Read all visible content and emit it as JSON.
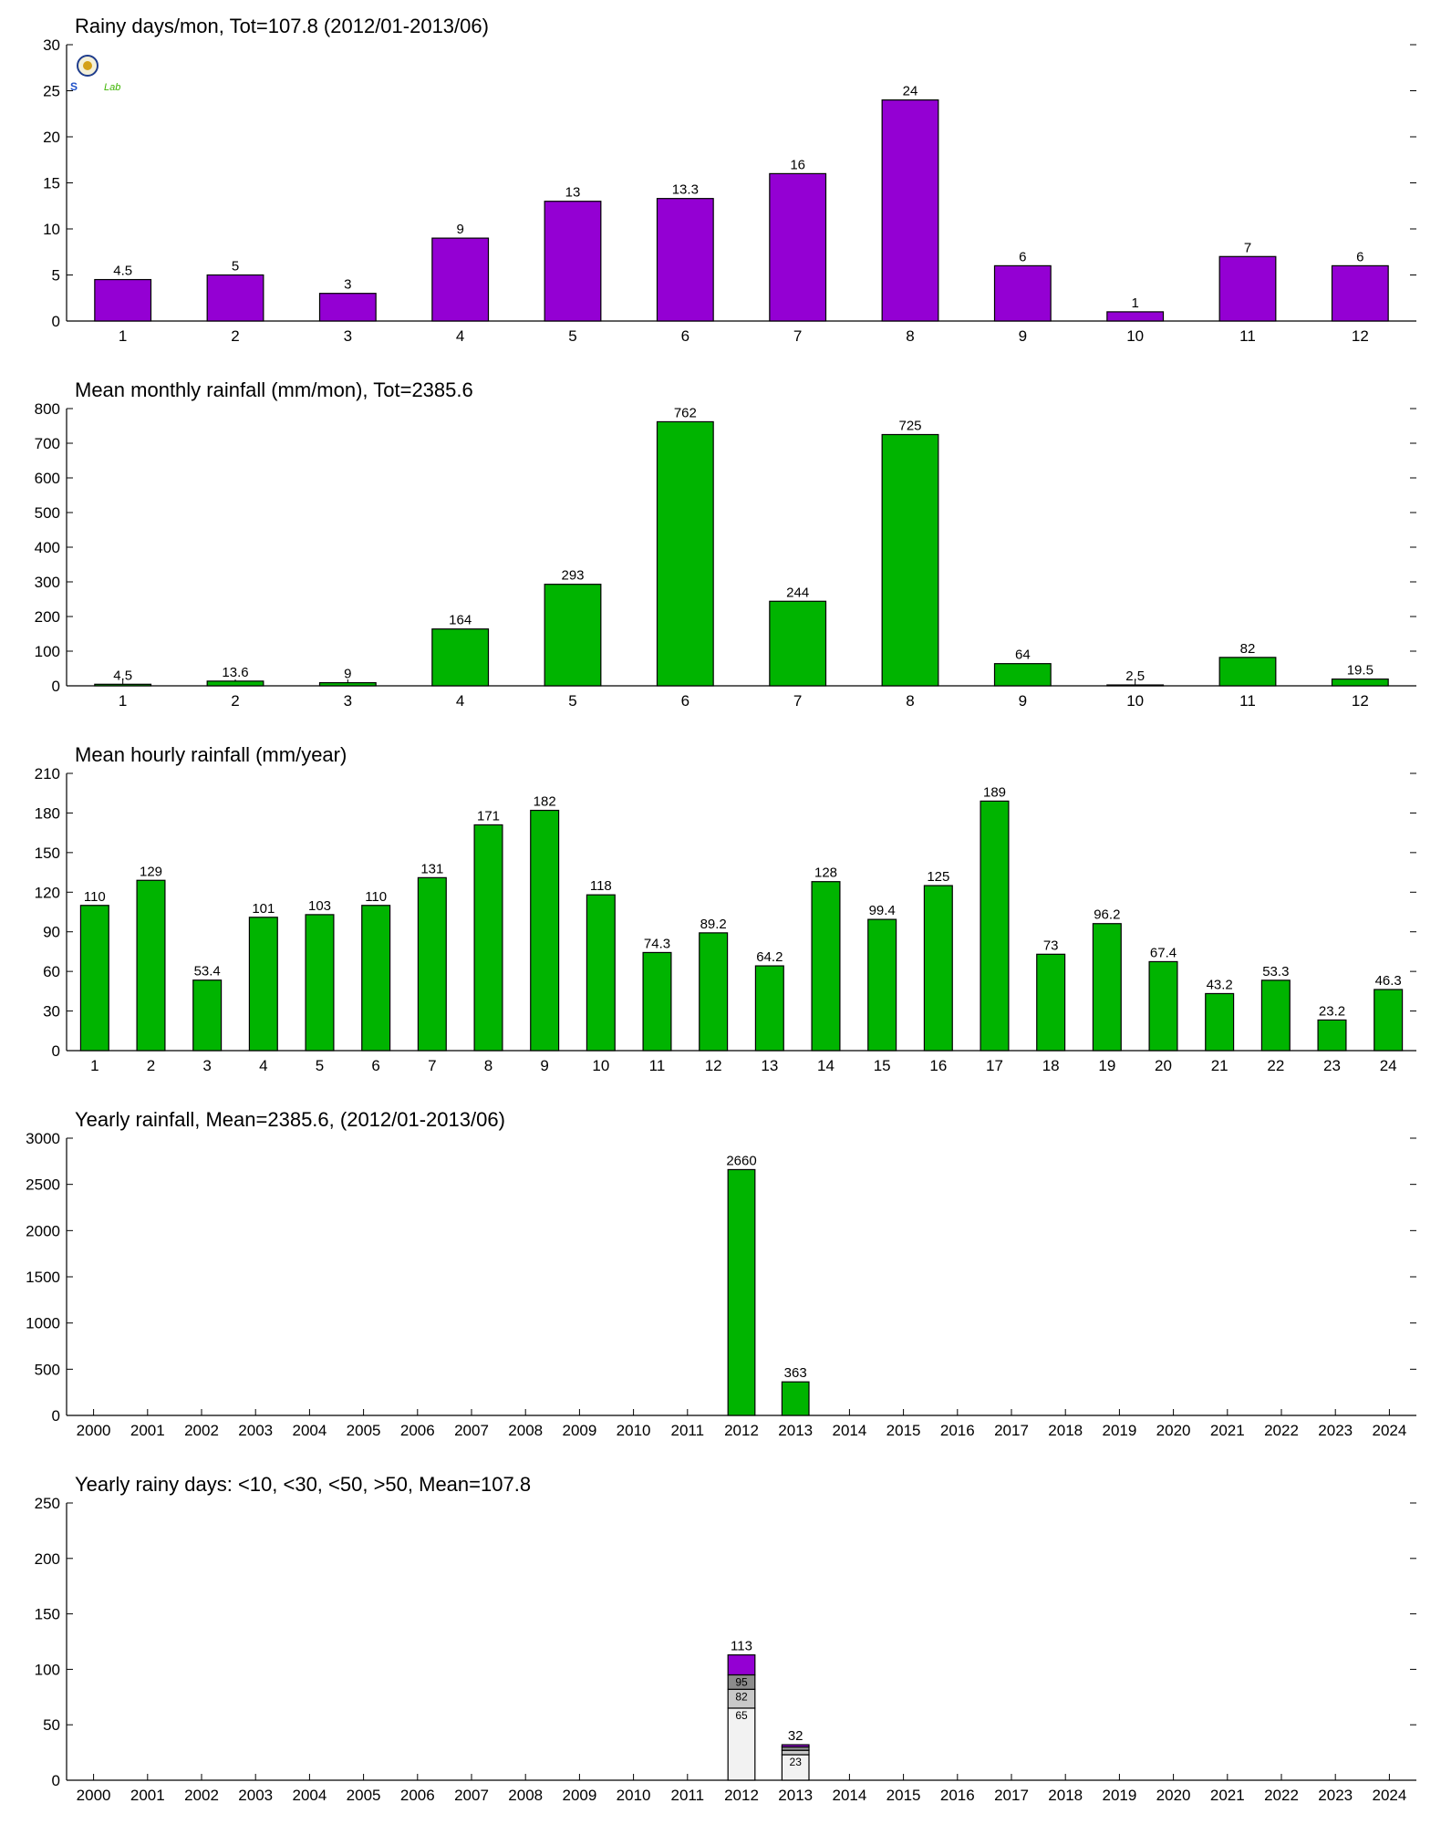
{
  "logo": {
    "text_left": "S",
    "text_right": "Lab"
  },
  "colors": {
    "purple": "#9400D3",
    "green": "#00B400",
    "seg1": "#F2F2F2",
    "seg2": "#C8C8C8",
    "seg3": "#8C8C8C",
    "seg4": "#9400D3"
  },
  "chart_data": [
    {
      "type": "bar",
      "title": "Rainy days/mon, Tot=107.8 (2012/01-2013/06)",
      "categories": [
        "1",
        "2",
        "3",
        "4",
        "5",
        "6",
        "7",
        "8",
        "9",
        "10",
        "11",
        "12"
      ],
      "values": [
        4.5,
        5,
        3,
        9,
        13,
        13.3,
        16,
        24,
        6,
        1,
        7,
        6
      ],
      "labels": [
        "4.5",
        "5",
        "3",
        "9",
        "13",
        "13.3",
        "16",
        "24",
        "6",
        "1",
        "7",
        "6"
      ],
      "ylim": [
        0,
        30
      ],
      "yticks": [
        0,
        5,
        10,
        15,
        20,
        25,
        30
      ],
      "color": "#9400D3"
    },
    {
      "type": "bar",
      "title": "Mean monthly rainfall (mm/mon), Tot=2385.6",
      "categories": [
        "1",
        "2",
        "3",
        "4",
        "5",
        "6",
        "7",
        "8",
        "9",
        "10",
        "11",
        "12"
      ],
      "values": [
        4.5,
        13.6,
        9,
        164,
        293,
        762,
        244,
        725,
        64,
        2.5,
        82,
        19.5
      ],
      "labels": [
        "4.5",
        "13.6",
        "9",
        "164",
        "293",
        "762",
        "244",
        "725",
        "64",
        "2.5",
        "82",
        "19.5"
      ],
      "ylim": [
        0,
        800
      ],
      "yticks": [
        0,
        100,
        200,
        300,
        400,
        500,
        600,
        700,
        800
      ],
      "color": "#00B400"
    },
    {
      "type": "bar",
      "title": "Mean hourly rainfall (mm/year)",
      "categories": [
        "1",
        "2",
        "3",
        "4",
        "5",
        "6",
        "7",
        "8",
        "9",
        "10",
        "11",
        "12",
        "13",
        "14",
        "15",
        "16",
        "17",
        "18",
        "19",
        "20",
        "21",
        "22",
        "23",
        "24"
      ],
      "values": [
        110,
        129,
        53.4,
        101,
        103,
        110,
        131,
        171,
        182,
        118,
        74.3,
        89.2,
        64.2,
        128,
        99.4,
        125,
        189,
        73,
        96.2,
        67.4,
        43.2,
        53.3,
        23.2,
        46.3
      ],
      "labels": [
        "110",
        "129",
        "53.4",
        "101",
        "103",
        "110",
        "131",
        "171",
        "182",
        "118",
        "74.3",
        "89.2",
        "64.2",
        "128",
        "99.4",
        "125",
        "189",
        "73",
        "96.2",
        "67.4",
        "43.2",
        "53.3",
        "23.2",
        "46.3"
      ],
      "ylim": [
        0,
        210
      ],
      "yticks": [
        0,
        30,
        60,
        90,
        120,
        150,
        180,
        210
      ],
      "color": "#00B400"
    },
    {
      "type": "bar",
      "title": "Yearly rainfall, Mean=2385.6, (2012/01-2013/06)",
      "categories": [
        "2000",
        "2001",
        "2002",
        "2003",
        "2004",
        "2005",
        "2006",
        "2007",
        "2008",
        "2009",
        "2010",
        "2011",
        "2012",
        "2013",
        "2014",
        "2015",
        "2016",
        "2017",
        "2018",
        "2019",
        "2020",
        "2021",
        "2022",
        "2023",
        "2024"
      ],
      "values": [
        null,
        null,
        null,
        null,
        null,
        null,
        null,
        null,
        null,
        null,
        null,
        null,
        2660,
        363,
        null,
        null,
        null,
        null,
        null,
        null,
        null,
        null,
        null,
        null,
        null
      ],
      "labels": [
        "",
        "",
        "",
        "",
        "",
        "",
        "",
        "",
        "",
        "",
        "",
        "",
        "2660",
        "363",
        "",
        "",
        "",
        "",
        "",
        "",
        "",
        "",
        "",
        "",
        ""
      ],
      "ylim": [
        0,
        3000
      ],
      "yticks": [
        0,
        500,
        1000,
        1500,
        2000,
        2500,
        3000
      ],
      "color": "#00B400"
    },
    {
      "type": "bar",
      "stacked": true,
      "title": "Yearly rainy days: <10, <30, <50, >50, Mean=107.8",
      "categories": [
        "2000",
        "2001",
        "2002",
        "2003",
        "2004",
        "2005",
        "2006",
        "2007",
        "2008",
        "2009",
        "2010",
        "2011",
        "2012",
        "2013",
        "2014",
        "2015",
        "2016",
        "2017",
        "2018",
        "2019",
        "2020",
        "2021",
        "2022",
        "2023",
        "2024"
      ],
      "stacks": [
        {
          "category": "2012",
          "cumulative": [
            65,
            82,
            95,
            113
          ],
          "labels": [
            "65",
            "82",
            "95"
          ],
          "total_label": "113"
        },
        {
          "category": "2013",
          "cumulative": [
            23,
            27,
            30,
            32
          ],
          "labels": [
            "23",
            "",
            ""
          ],
          "total_label": "32"
        }
      ],
      "ylim": [
        0,
        250
      ],
      "yticks": [
        0,
        50,
        100,
        150,
        200,
        250
      ]
    }
  ]
}
